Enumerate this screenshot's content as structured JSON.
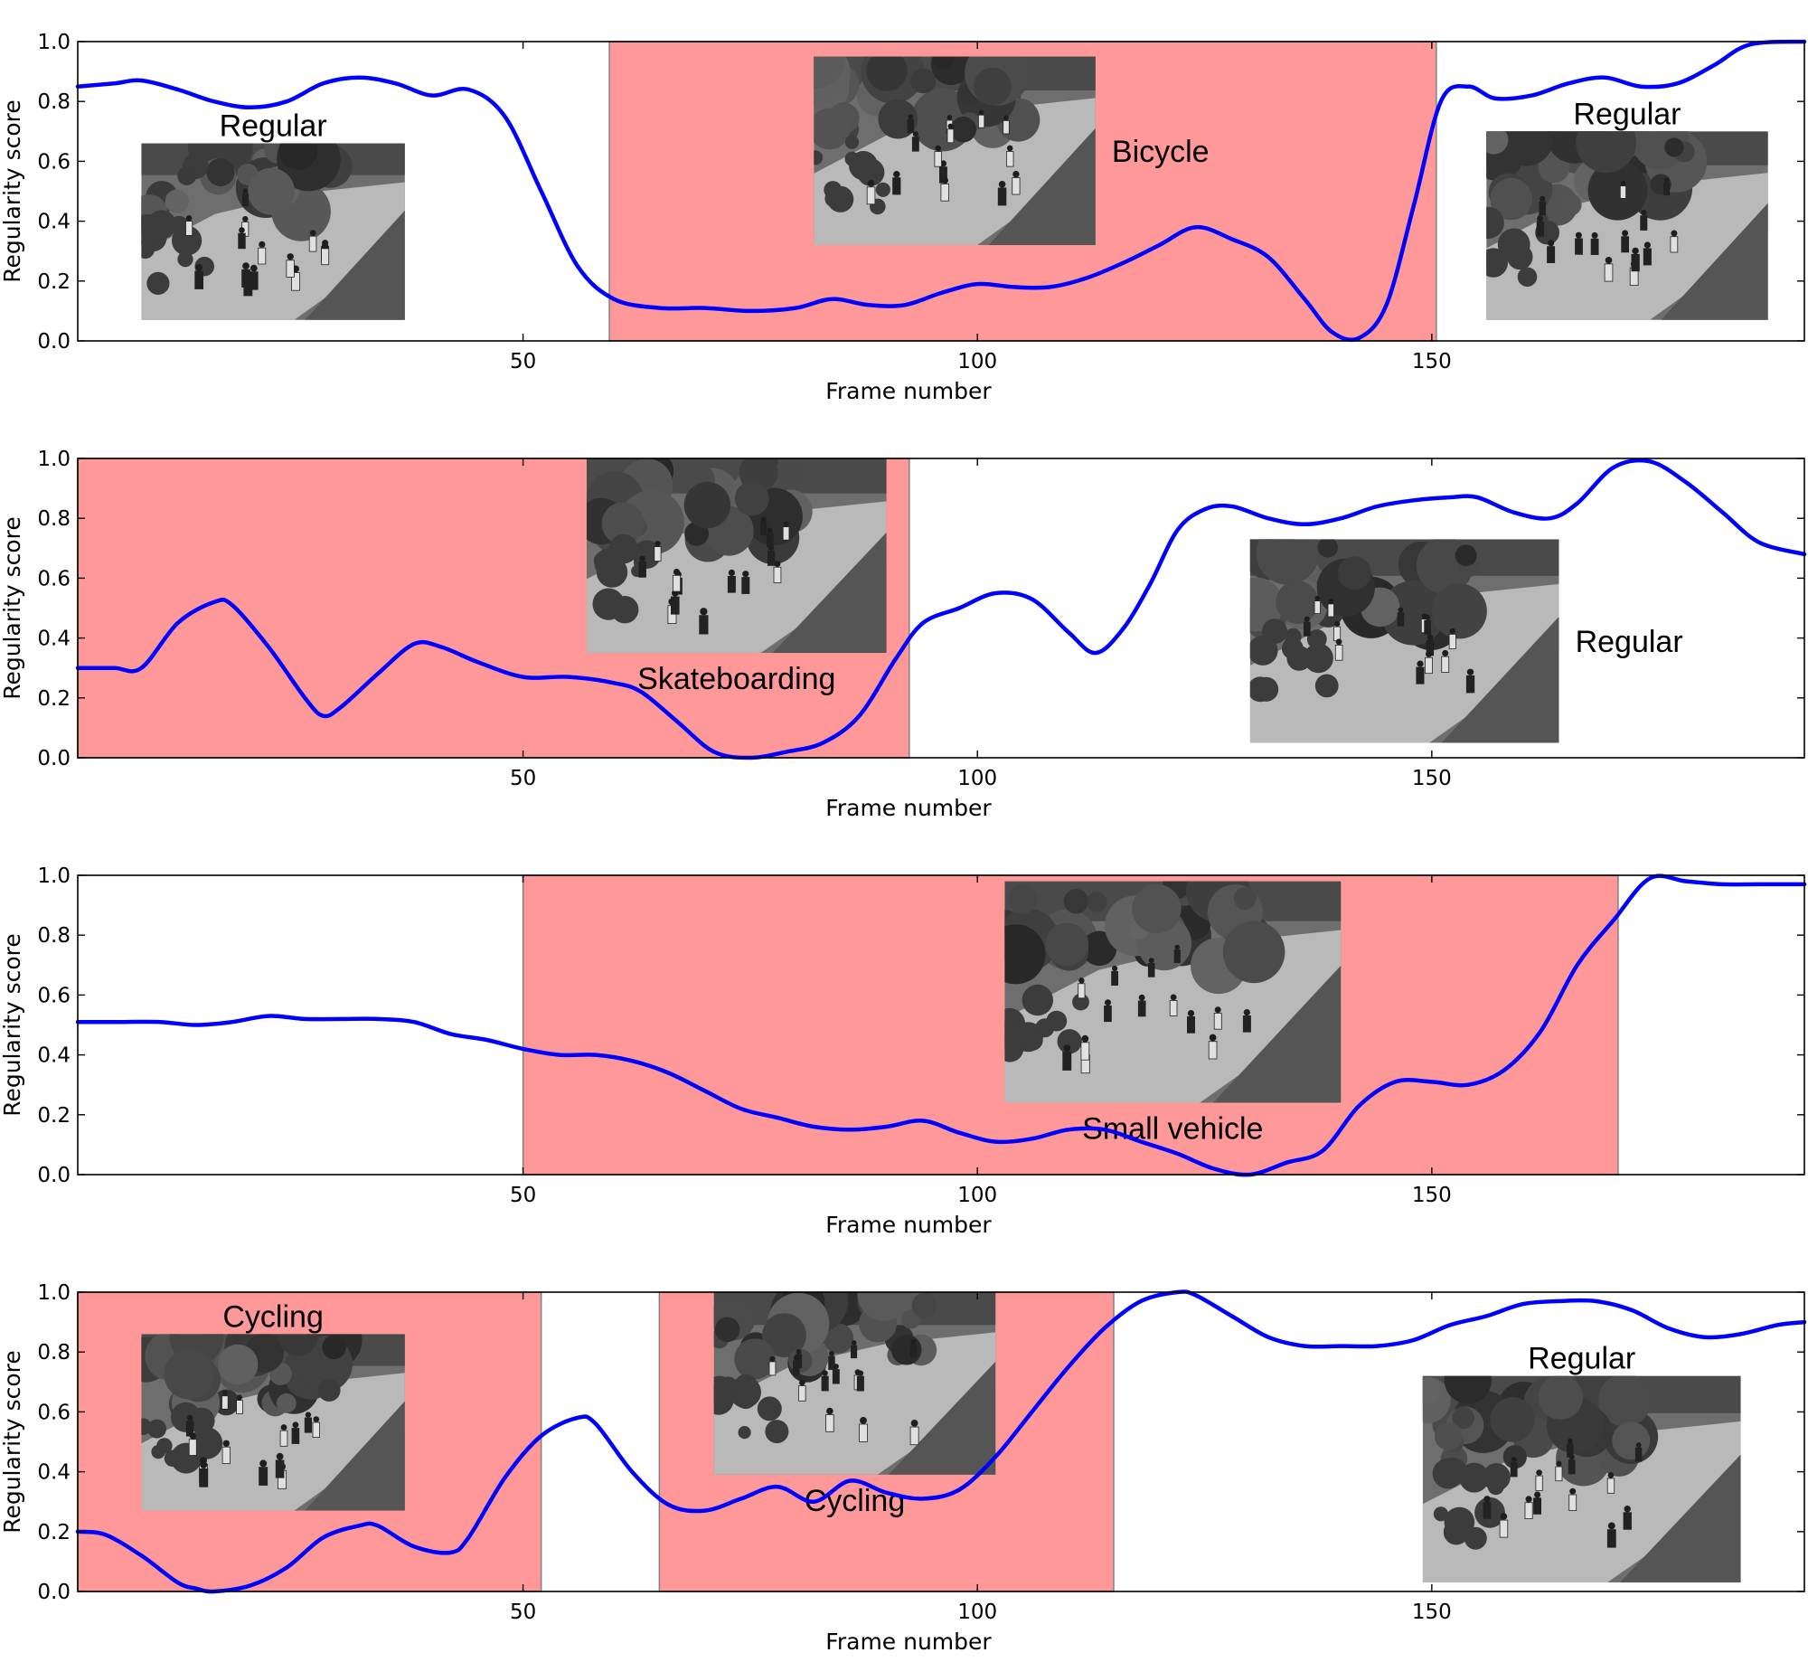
{
  "chart_data": [
    {
      "type": "line",
      "xlabel": "Frame number",
      "ylabel": "Regularity score",
      "xlim": [
        1,
        191
      ],
      "ylim": [
        0,
        1
      ],
      "xticks": [
        50,
        100,
        150
      ],
      "yticks": [
        0.0,
        0.2,
        0.4,
        0.6,
        0.8,
        1.0
      ],
      "ytick_labels": [
        "0.0",
        "0.2",
        "0.4",
        "0.6",
        "0.8",
        "1.0"
      ],
      "line_color": "#0000ff",
      "shade_color": "#ff9999",
      "shaded_ranges": [
        [
          59.5,
          150.5
        ]
      ],
      "series": [
        {
          "x": [
            1,
            5,
            8,
            12,
            16,
            20,
            24,
            28,
            32,
            36,
            40,
            44,
            48,
            52,
            56,
            60,
            65,
            70,
            75,
            80,
            84,
            88,
            92,
            96,
            100,
            104,
            108,
            112,
            116,
            120,
            124,
            128,
            132,
            136,
            139,
            142,
            145,
            148,
            151,
            154,
            157,
            161,
            165,
            169,
            173,
            177,
            181,
            185,
            191
          ],
          "y": [
            0.85,
            0.86,
            0.87,
            0.84,
            0.8,
            0.78,
            0.8,
            0.86,
            0.88,
            0.86,
            0.82,
            0.84,
            0.75,
            0.5,
            0.25,
            0.14,
            0.11,
            0.11,
            0.1,
            0.11,
            0.14,
            0.12,
            0.12,
            0.16,
            0.19,
            0.18,
            0.18,
            0.21,
            0.26,
            0.32,
            0.38,
            0.34,
            0.28,
            0.14,
            0.03,
            0.01,
            0.12,
            0.45,
            0.8,
            0.85,
            0.81,
            0.82,
            0.86,
            0.88,
            0.85,
            0.86,
            0.92,
            0.99,
            1.0
          ]
        }
      ],
      "images": [
        {
          "caption": "Regular",
          "caption_pos": "above",
          "x0": 8,
          "x1": 37,
          "y0": 0.07,
          "y1": 0.66
        },
        {
          "caption": "Bicycle",
          "caption_pos": "right",
          "x0": 82,
          "x1": 113,
          "y0": 0.32,
          "y1": 0.95
        },
        {
          "caption": "Regular",
          "caption_pos": "above",
          "x0": 156,
          "x1": 187,
          "y0": 0.07,
          "y1": 0.7
        }
      ]
    },
    {
      "type": "line",
      "xlabel": "Frame number",
      "ylabel": "Regularity score",
      "xlim": [
        1,
        191
      ],
      "ylim": [
        0,
        1
      ],
      "xticks": [
        50,
        100,
        150
      ],
      "yticks": [
        0.0,
        0.2,
        0.4,
        0.6,
        0.8,
        1.0
      ],
      "ytick_labels": [
        "0.0",
        "0.2",
        "0.4",
        "0.6",
        "0.8",
        "1.0"
      ],
      "line_color": "#0000ff",
      "shade_color": "#ff9999",
      "shaded_ranges": [
        [
          1,
          92.5
        ]
      ],
      "series": [
        {
          "x": [
            1,
            5,
            8,
            12,
            16,
            18,
            22,
            26,
            28,
            30,
            34,
            38,
            41,
            45,
            50,
            55,
            60,
            63,
            67,
            71,
            75,
            79,
            83,
            87,
            91,
            94,
            98,
            102,
            106,
            110,
            113,
            116,
            119,
            122,
            125,
            128,
            132,
            136,
            140,
            144,
            148,
            152,
            155,
            159,
            163,
            166,
            170,
            174,
            178,
            182,
            186,
            191
          ],
          "y": [
            0.3,
            0.3,
            0.3,
            0.45,
            0.52,
            0.51,
            0.37,
            0.2,
            0.14,
            0.17,
            0.28,
            0.38,
            0.37,
            0.32,
            0.27,
            0.27,
            0.25,
            0.22,
            0.12,
            0.02,
            0.0,
            0.02,
            0.05,
            0.14,
            0.33,
            0.45,
            0.5,
            0.55,
            0.53,
            0.42,
            0.35,
            0.43,
            0.58,
            0.76,
            0.83,
            0.84,
            0.8,
            0.78,
            0.8,
            0.84,
            0.86,
            0.87,
            0.87,
            0.82,
            0.8,
            0.85,
            0.97,
            0.99,
            0.92,
            0.82,
            0.72,
            0.68
          ]
        }
      ],
      "images": [
        {
          "caption": "Skateboarding",
          "caption_pos": "below",
          "x0": 57,
          "x1": 90,
          "y0": 0.35,
          "y1": 1.0
        },
        {
          "caption": "Regular",
          "caption_pos": "right",
          "x0": 130,
          "x1": 164,
          "y0": 0.05,
          "y1": 0.73
        }
      ]
    },
    {
      "type": "line",
      "xlabel": "Frame number",
      "ylabel": "Regularity score",
      "xlim": [
        1,
        191
      ],
      "ylim": [
        0,
        1
      ],
      "xticks": [
        50,
        100,
        150
      ],
      "yticks": [
        0.0,
        0.2,
        0.4,
        0.6,
        0.8,
        1.0
      ],
      "ytick_labels": [
        "0.0",
        "0.2",
        "0.4",
        "0.6",
        "0.8",
        "1.0"
      ],
      "line_color": "#0000ff",
      "shade_color": "#ff9999",
      "shaded_ranges": [
        [
          50,
          170.5
        ]
      ],
      "series": [
        {
          "x": [
            1,
            6,
            10,
            14,
            18,
            22,
            26,
            30,
            34,
            38,
            42,
            46,
            50,
            54,
            58,
            62,
            66,
            70,
            74,
            78,
            82,
            86,
            90,
            94,
            98,
            102,
            106,
            110,
            114,
            118,
            122,
            126,
            130,
            134,
            138,
            142,
            146,
            150,
            154,
            158,
            162,
            166,
            170,
            174,
            178,
            182,
            186,
            191
          ],
          "y": [
            0.51,
            0.51,
            0.51,
            0.5,
            0.51,
            0.53,
            0.52,
            0.52,
            0.52,
            0.51,
            0.47,
            0.45,
            0.42,
            0.4,
            0.4,
            0.38,
            0.34,
            0.28,
            0.22,
            0.19,
            0.16,
            0.15,
            0.16,
            0.18,
            0.14,
            0.11,
            0.12,
            0.15,
            0.15,
            0.11,
            0.07,
            0.02,
            0.0,
            0.04,
            0.08,
            0.23,
            0.31,
            0.31,
            0.3,
            0.35,
            0.48,
            0.7,
            0.85,
            0.99,
            0.98,
            0.97,
            0.97,
            0.97
          ]
        }
      ],
      "images": [
        {
          "caption": "Small vehicle",
          "caption_pos": "below",
          "x0": 103,
          "x1": 140,
          "y0": 0.24,
          "y1": 0.98
        }
      ]
    },
    {
      "type": "line",
      "xlabel": "Frame number",
      "ylabel": "Regularity score",
      "xlim": [
        1,
        191
      ],
      "ylim": [
        0,
        1
      ],
      "xticks": [
        50,
        100,
        150
      ],
      "yticks": [
        0.0,
        0.2,
        0.4,
        0.6,
        0.8,
        1.0
      ],
      "ytick_labels": [
        "0.0",
        "0.2",
        "0.4",
        "0.6",
        "0.8",
        "1.0"
      ],
      "line_color": "#0000ff",
      "shade_color": "#ff9999",
      "shaded_ranges": [
        [
          1,
          52
        ],
        [
          65,
          115
        ]
      ],
      "series": [
        {
          "x": [
            1,
            4,
            8,
            12,
            14,
            16,
            20,
            24,
            28,
            32,
            34,
            38,
            42,
            44,
            48,
            52,
            56,
            58,
            62,
            66,
            70,
            74,
            78,
            82,
            86,
            90,
            94,
            98,
            102,
            106,
            110,
            114,
            118,
            122,
            124,
            128,
            132,
            136,
            140,
            144,
            148,
            152,
            156,
            160,
            164,
            168,
            172,
            176,
            180,
            184,
            188,
            191
          ],
          "y": [
            0.2,
            0.19,
            0.12,
            0.03,
            0.01,
            0.0,
            0.02,
            0.08,
            0.18,
            0.22,
            0.22,
            0.15,
            0.13,
            0.18,
            0.38,
            0.52,
            0.58,
            0.56,
            0.4,
            0.29,
            0.27,
            0.31,
            0.35,
            0.3,
            0.37,
            0.33,
            0.31,
            0.34,
            0.45,
            0.6,
            0.75,
            0.88,
            0.97,
            1.0,
            0.99,
            0.92,
            0.85,
            0.82,
            0.82,
            0.82,
            0.84,
            0.89,
            0.92,
            0.96,
            0.97,
            0.97,
            0.94,
            0.88,
            0.85,
            0.86,
            0.89,
            0.9
          ]
        }
      ],
      "images": [
        {
          "caption": "Cycling",
          "caption_pos": "above",
          "x0": 8,
          "x1": 37,
          "y0": 0.27,
          "y1": 0.86
        },
        {
          "caption": "Cycling",
          "caption_pos": "below",
          "x0": 71,
          "x1": 102,
          "y0": 0.39,
          "y1": 1.0
        },
        {
          "caption": "Regular",
          "caption_pos": "above",
          "x0": 149,
          "x1": 184,
          "y0": 0.03,
          "y1": 0.72
        }
      ]
    }
  ]
}
